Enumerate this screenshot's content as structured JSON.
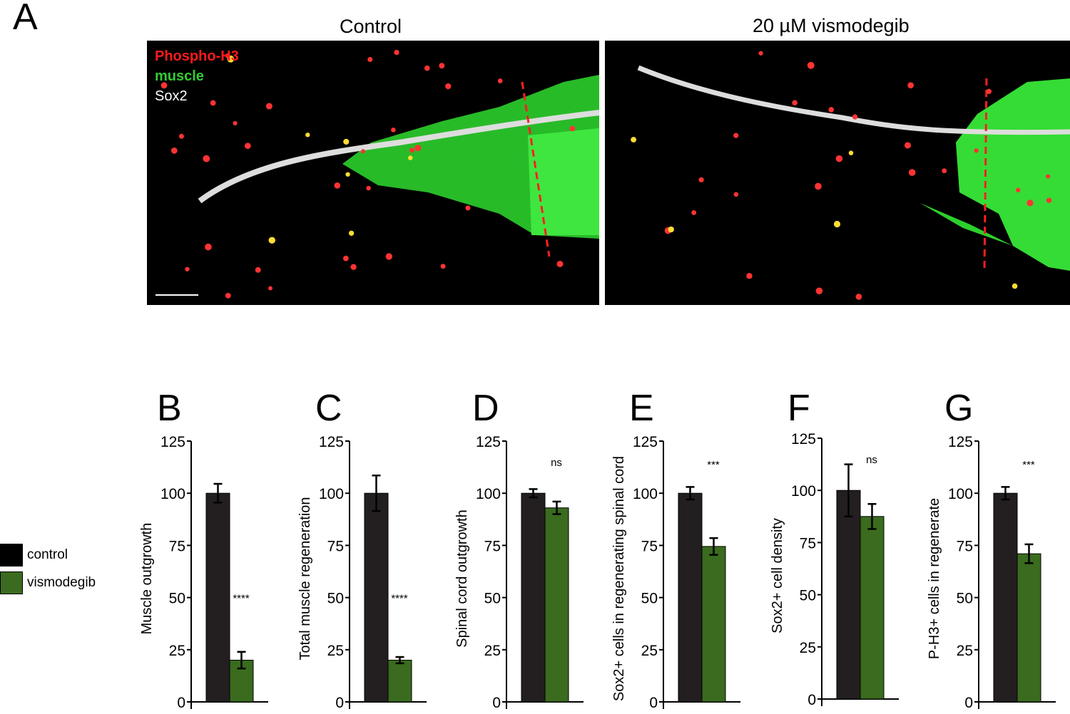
{
  "panel_a": {
    "letter": "A",
    "titles": [
      "Control",
      "20 µM vismodegib"
    ],
    "channel_labels": [
      {
        "text": "Phospho-H3",
        "color": "#ff1a1a"
      },
      {
        "text": "muscle",
        "color": "#33cc33"
      },
      {
        "text": "Sox2",
        "color": "#ffffff"
      }
    ]
  },
  "legend": [
    {
      "label": "control",
      "color": "#231f20"
    },
    {
      "label": "vismodegib",
      "color": "#3a6b1e"
    }
  ],
  "chart_data": [
    {
      "type": "bar",
      "letter": "B",
      "ylabel": "Muscle outgrowth",
      "ylim": [
        0,
        125
      ],
      "yticks": [
        "0",
        "25",
        "50",
        "75",
        "100",
        "125"
      ],
      "categories": [
        "control",
        "vismodegib"
      ],
      "values": [
        100,
        20
      ],
      "errors": [
        4.5,
        4
      ],
      "significance": "****"
    },
    {
      "type": "bar",
      "letter": "C",
      "ylabel": "Total muscle regeneration",
      "ylim": [
        0,
        125
      ],
      "yticks": [
        "0",
        "25",
        "50",
        "75",
        "100",
        "125"
      ],
      "categories": [
        "control",
        "vismodegib"
      ],
      "values": [
        100,
        20
      ],
      "errors": [
        8.5,
        1.5
      ],
      "significance": "****"
    },
    {
      "type": "bar",
      "letter": "D",
      "ylabel": "Spinal cord outgrowth",
      "ylim": [
        0,
        125
      ],
      "yticks": [
        "0",
        "25",
        "50",
        "75",
        "100",
        "125"
      ],
      "categories": [
        "control",
        "vismodegib"
      ],
      "values": [
        100,
        93
      ],
      "errors": [
        2,
        3
      ],
      "significance": "ns"
    },
    {
      "type": "bar",
      "letter": "E",
      "ylabel": "Sox2+ cells in regenerating spinal cord",
      "ylim": [
        0,
        125
      ],
      "yticks": [
        "0",
        "25",
        "50",
        "75",
        "100",
        "125"
      ],
      "categories": [
        "control",
        "vismodegib"
      ],
      "values": [
        100,
        74.5
      ],
      "errors": [
        3,
        4
      ],
      "significance": "***"
    },
    {
      "type": "bar",
      "letter": "F",
      "ylabel": "Sox2+ cell density",
      "ylim": [
        0,
        125
      ],
      "yticks": [
        "0",
        "25",
        "50",
        "75",
        "100",
        "125"
      ],
      "categories": [
        "control",
        "vismodegib"
      ],
      "values": [
        100,
        87.5
      ],
      "errors": [
        12.5,
        6
      ],
      "significance": "ns"
    },
    {
      "type": "bar",
      "letter": "G",
      "ylabel": "P-H3+ cells in regenerate",
      "ylim": [
        0,
        125
      ],
      "yticks": [
        "0",
        "25",
        "50",
        "75",
        "100",
        "125"
      ],
      "categories": [
        "control",
        "vismodegib"
      ],
      "values": [
        100,
        71
      ],
      "errors": [
        3,
        4.5
      ],
      "significance": "***"
    }
  ]
}
